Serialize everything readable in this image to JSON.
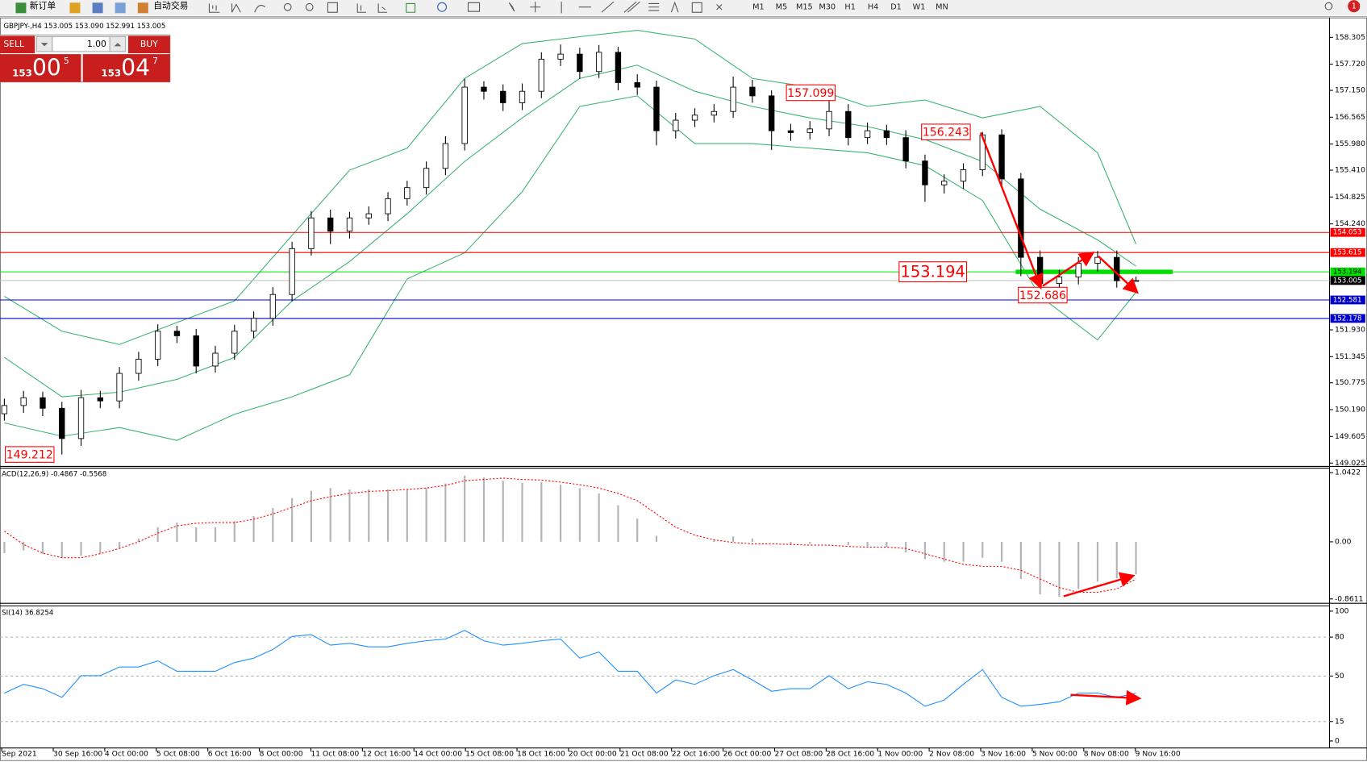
{
  "toolbar": {
    "new_order": "新订单",
    "auto_trading": "自动交易",
    "timeframes": [
      "M1",
      "M5",
      "M15",
      "M30",
      "H1",
      "H4",
      "D1",
      "W1",
      "MN"
    ],
    "notifications": "1"
  },
  "trade_panel": {
    "sell": "SELL",
    "buy": "BUY",
    "lot": "1.00",
    "sell_price": {
      "big": "153",
      "main": "00",
      "sup": "5"
    },
    "buy_price": {
      "big": "153",
      "main": "04",
      "sup": "7"
    }
  },
  "chart_data": [
    {
      "type": "candlestick",
      "title": "GBPJPY-,H4  153.005 153.090 152.991 153.005",
      "bull_color": "#ffffff",
      "bear_color": "#000000",
      "open": [
        150.1,
        150.28,
        150.45,
        150.22,
        149.56,
        150.45,
        150.38,
        150.98,
        151.29,
        151.9,
        151.8,
        151.14,
        151.42,
        151.9,
        152.18,
        152.7,
        153.7,
        154.37,
        154.08,
        154.37,
        154.46,
        154.79,
        155.03,
        155.45,
        155.99,
        157.22,
        157.13,
        156.88,
        157.13,
        157.83,
        157.94,
        157.56,
        157.98,
        157.32,
        157.22,
        156.27,
        156.5,
        156.61,
        156.69,
        157.22,
        157.03,
        156.27,
        156.23,
        156.31,
        156.69,
        156.12,
        156.27,
        156.12,
        155.61,
        155.09,
        155.17,
        155.42,
        156.18,
        155.22,
        153.51,
        152.94,
        153.08,
        153.38,
        153.51,
        153.005
      ],
      "high": [
        150.43,
        150.6,
        150.58,
        150.36,
        150.62,
        150.6,
        151.12,
        151.45,
        152.05,
        152.02,
        151.95,
        151.58,
        152.04,
        152.33,
        152.86,
        153.85,
        154.52,
        154.55,
        154.5,
        154.62,
        154.93,
        155.18,
        155.6,
        156.15,
        157.4,
        157.35,
        157.28,
        157.3,
        157.98,
        158.15,
        158.08,
        158.14,
        158.1,
        157.5,
        157.36,
        156.66,
        156.76,
        156.85,
        157.45,
        157.38,
        157.15,
        156.42,
        156.48,
        157.099,
        156.85,
        156.45,
        156.4,
        156.28,
        155.75,
        155.32,
        155.56,
        156.243,
        156.3,
        155.35,
        153.66,
        153.24,
        153.52,
        153.65,
        153.66,
        153.09
      ],
      "low": [
        149.95,
        150.12,
        150.05,
        149.212,
        149.4,
        150.22,
        150.22,
        150.82,
        151.14,
        151.64,
        150.98,
        151.0,
        151.28,
        151.75,
        152.02,
        152.55,
        153.55,
        153.8,
        153.92,
        154.22,
        154.3,
        154.64,
        154.88,
        155.3,
        155.84,
        156.95,
        156.7,
        156.72,
        156.98,
        157.68,
        157.4,
        157.42,
        157.15,
        157.05,
        155.95,
        156.1,
        156.35,
        156.45,
        156.55,
        156.88,
        155.85,
        156.05,
        156.08,
        156.15,
        155.95,
        155.98,
        155.96,
        155.45,
        154.72,
        154.9,
        155.0,
        155.28,
        155.05,
        153.1,
        152.686,
        152.78,
        152.92,
        153.2,
        152.85,
        152.991
      ],
      "close": [
        150.28,
        150.45,
        150.22,
        149.56,
        150.45,
        150.38,
        150.98,
        151.29,
        151.9,
        151.8,
        151.14,
        151.42,
        151.9,
        152.18,
        152.7,
        153.7,
        154.37,
        154.08,
        154.37,
        154.46,
        154.79,
        155.03,
        155.45,
        155.99,
        157.22,
        157.13,
        156.88,
        157.13,
        157.83,
        157.94,
        157.56,
        157.98,
        157.32,
        157.22,
        156.27,
        156.5,
        156.61,
        156.69,
        157.22,
        157.03,
        156.27,
        156.23,
        156.31,
        156.69,
        156.12,
        156.27,
        156.12,
        155.61,
        155.09,
        155.17,
        155.42,
        156.18,
        155.22,
        153.51,
        152.94,
        153.08,
        153.38,
        153.51,
        153.0,
        153.005
      ],
      "bands": [
        {
          "color": "#3cb371",
          "x": [
            0,
            3,
            6,
            9,
            12,
            15,
            18,
            21,
            24,
            27,
            30,
            33,
            36,
            39,
            42,
            45,
            48,
            51,
            54,
            57,
            59
          ],
          "values": [
            152.66,
            151.9,
            151.61,
            152.09,
            152.56,
            153.99,
            155.41,
            155.89,
            157.41,
            158.17,
            158.32,
            158.46,
            158.27,
            157.41,
            157.22,
            156.8,
            156.94,
            156.55,
            156.8,
            155.79,
            153.8
          ]
        },
        {
          "color": "#3cb371",
          "x": [
            0,
            3,
            6,
            9,
            12,
            15,
            18,
            21,
            24,
            27,
            30,
            33,
            36,
            39,
            42,
            45,
            48,
            51,
            54,
            57,
            59
          ],
          "values": [
            151.33,
            150.47,
            150.57,
            150.85,
            151.33,
            152.56,
            153.42,
            154.46,
            155.6,
            156.55,
            157.41,
            157.7,
            157.13,
            156.8,
            156.55,
            156.36,
            156.08,
            155.6,
            154.56,
            153.89,
            153.32
          ]
        },
        {
          "color": "#3cb371",
          "x": [
            0,
            3,
            6,
            9,
            12,
            15,
            18,
            21,
            24,
            27,
            30,
            33,
            36,
            39,
            42,
            45,
            48,
            51,
            54,
            57,
            59
          ],
          "values": [
            149.9,
            149.61,
            149.8,
            149.52,
            150.09,
            150.47,
            150.95,
            153.04,
            153.61,
            154.94,
            156.8,
            157.03,
            155.99,
            155.99,
            155.89,
            155.79,
            155.51,
            154.75,
            152.66,
            151.71,
            152.75
          ]
        }
      ],
      "levels": [
        {
          "value": 154.053,
          "color": "#ff0000"
        },
        {
          "value": 153.615,
          "color": "#ff0000"
        },
        {
          "value": 153.194,
          "color": "#00e000",
          "highlight": true
        },
        {
          "value": 153.005,
          "color": "#000000"
        },
        {
          "value": 152.581,
          "color": "#0000cc"
        },
        {
          "value": 152.178,
          "color": "#0000cc"
        }
      ],
      "annotations": [
        157.099,
        156.243,
        153.194,
        152.686,
        149.212
      ],
      "ylim": [
        148.99,
        158.7
      ],
      "yticks": [
        158.305,
        {
          "value": 157.72,
          "label": "157.720"
        },
        {
          "value": 157.15,
          "label": "157.150"
        },
        156.565,
        {
          "value": 155.98,
          "label": "155.980"
        },
        {
          "value": 155.41,
          "label": "155.410"
        },
        154.825,
        {
          "value": 154.24,
          "label": "154.240"
        },
        {
          "value": 151.93,
          "label": "151.930"
        },
        151.345,
        150.775,
        {
          "value": 150.19,
          "label": "150.190"
        },
        149.605,
        149.025
      ]
    },
    {
      "type": "macd",
      "title": "ACD(12,26,9) -0.4867 -0.5568",
      "series": [
        {
          "color": "#b4b4b4",
          "values": [
            -0.17,
            -0.13,
            -0.18,
            -0.24,
            -0.21,
            -0.18,
            -0.1,
            0.05,
            0.22,
            0.29,
            0.22,
            0.22,
            0.31,
            0.39,
            0.51,
            0.66,
            0.77,
            0.81,
            0.79,
            0.79,
            0.79,
            0.79,
            0.81,
            0.88,
            1.0,
            0.97,
            0.92,
            0.89,
            0.9,
            0.86,
            0.81,
            0.73,
            0.55,
            0.35,
            0.09,
            0.0,
            0.0,
            0.03,
            0.08,
            0.05,
            0.0,
            -0.05,
            -0.03,
            0.0,
            -0.05,
            -0.07,
            -0.08,
            -0.16,
            -0.26,
            -0.3,
            -0.3,
            -0.24,
            -0.3,
            -0.56,
            -0.79,
            -0.83,
            -0.71,
            -0.6,
            -0.55,
            -0.49
          ]
        },
        {
          "color": "#ff0000",
          "dashed": true,
          "values": [
            0.16,
            -0.04,
            -0.17,
            -0.24,
            -0.24,
            -0.18,
            -0.1,
            0.0,
            0.13,
            0.24,
            0.28,
            0.29,
            0.29,
            0.34,
            0.42,
            0.52,
            0.62,
            0.68,
            0.73,
            0.76,
            0.77,
            0.79,
            0.81,
            0.85,
            0.92,
            0.94,
            0.96,
            0.94,
            0.93,
            0.9,
            0.86,
            0.81,
            0.73,
            0.62,
            0.42,
            0.22,
            0.1,
            0.03,
            -0.01,
            -0.03,
            -0.03,
            -0.04,
            -0.05,
            -0.05,
            -0.07,
            -0.08,
            -0.08,
            -0.1,
            -0.18,
            -0.26,
            -0.34,
            -0.37,
            -0.37,
            -0.43,
            -0.56,
            -0.69,
            -0.76,
            -0.76,
            -0.71,
            -0.56
          ]
        }
      ],
      "ylim": [
        -0.9,
        1.11
      ],
      "yticks": [
        1.0422,
        {
          "value": 0,
          "label": "0.00"
        },
        -0.8611
      ]
    },
    {
      "type": "line",
      "title": "SI(14) 36.8254",
      "series": [
        {
          "color": "#1e90ff",
          "values": [
            36.9,
            43.6,
            40.3,
            33.6,
            50.3,
            50.3,
            57,
            57,
            61.7,
            53.7,
            53.7,
            53.7,
            60.4,
            63.8,
            70.5,
            80.5,
            81.9,
            73.8,
            75.2,
            72.5,
            72.5,
            75.2,
            77.2,
            78.5,
            85.2,
            77.2,
            73.8,
            75.2,
            77.2,
            78.5,
            63.8,
            68.5,
            53.7,
            53.7,
            36.9,
            47,
            43.6,
            50.3,
            55,
            47,
            38.3,
            40.3,
            40.3,
            50.3,
            40.3,
            45.6,
            43.6,
            36.9,
            26.8,
            31.5,
            43.6,
            55,
            33.6,
            26.8,
            28.2,
            30.2,
            36.9,
            36.9,
            33.6,
            36.83
          ]
        }
      ],
      "levels": [
        80,
        50,
        15
      ],
      "ylim": [
        -4.7,
        102.7
      ],
      "yticks": [
        100,
        80,
        50,
        15,
        0
      ],
      "time_labels": [
        "Sep 2021",
        "30 Sep 16:00",
        "4 Oct 00:00",
        "5 Oct 08:00",
        "6 Oct 16:00",
        "8 Oct 00:00",
        "11 Oct 08:00",
        "12 Oct 16:00",
        "14 Oct 00:00",
        "15 Oct 08:00",
        "18 Oct 16:00",
        "20 Oct 00:00",
        "21 Oct 08:00",
        "22 Oct 16:00",
        "26 Oct 00:00",
        "27 Oct 08:00",
        "28 Oct 16:00",
        "1 Nov 00:00",
        "2 Nov 08:00",
        "3 Nov 16:00",
        "5 Nov 00:00",
        "8 Nov 08:00",
        "9 Nov 16:00"
      ]
    }
  ]
}
